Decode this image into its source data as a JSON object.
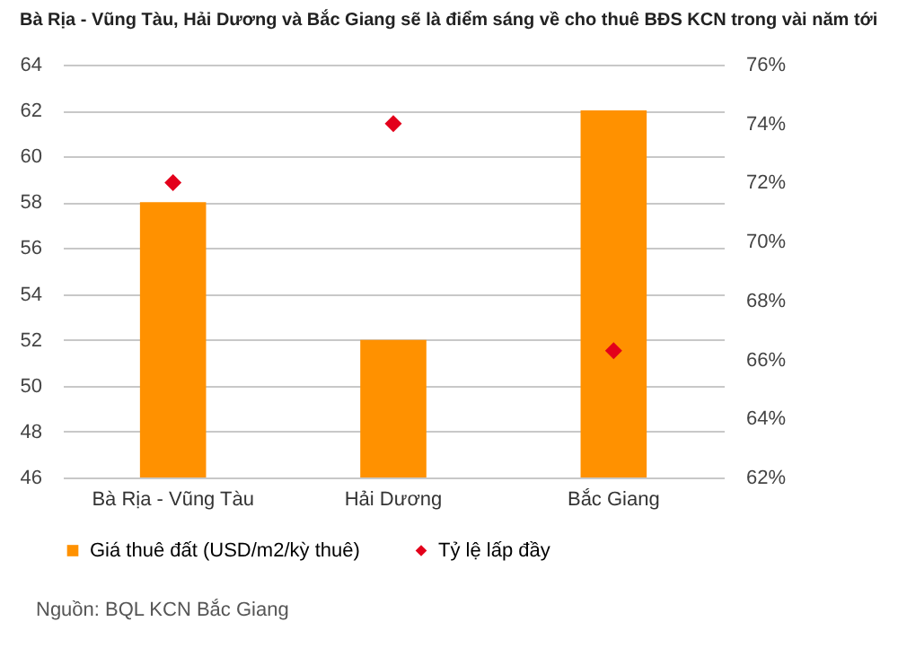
{
  "chart_data": {
    "type": "bar",
    "title": "Bà Rịa - Vũng Tàu, Hải Dương và Bắc Giang sẽ là điểm sáng về cho thuê BĐS KCN trong vài năm tới",
    "categories": [
      "Bà Rịa - Vũng Tàu",
      "Hải Dương",
      "Bắc Giang"
    ],
    "series": [
      {
        "name": "Giá thuê đất (USD/m2/kỳ  thuê)",
        "color": "#ff9100",
        "values": [
          58,
          52,
          62
        ]
      },
      {
        "name": "Tỷ lệ lấp đầy",
        "type": "scatter",
        "axis": "y2",
        "color": "#e3001b",
        "marker": "diamond",
        "values": [
          72,
          74,
          66.3
        ]
      }
    ],
    "ylim": [
      46,
      64
    ],
    "yticks": [
      46,
      48,
      50,
      52,
      54,
      56,
      58,
      60,
      62,
      64
    ],
    "y2lim": [
      62,
      76
    ],
    "y2ticks": [
      {
        "value": 62,
        "label": "62%"
      },
      {
        "value": 64,
        "label": "64%"
      },
      {
        "value": 66,
        "label": "66%"
      },
      {
        "value": 68,
        "label": "68%"
      },
      {
        "value": 70,
        "label": "70%"
      },
      {
        "value": 72,
        "label": "72%"
      },
      {
        "value": 74,
        "label": "74%"
      },
      {
        "value": 76,
        "label": "76%"
      }
    ],
    "grid": "y",
    "legend": "bottom",
    "annotations": [
      "Nguồn: BQL KCN Bắc Giang"
    ]
  }
}
